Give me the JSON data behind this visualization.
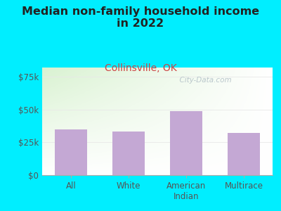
{
  "title": "Median non-family household income\nin 2022",
  "subtitle": "Collinsville, OK",
  "categories": [
    "All",
    "White",
    "American\nIndian",
    "Multirace"
  ],
  "values": [
    35000,
    33000,
    49000,
    32000
  ],
  "bar_color": "#c4a8d4",
  "title_fontsize": 11.5,
  "subtitle_fontsize": 10,
  "subtitle_color": "#cc4444",
  "title_color": "#222222",
  "background_outer": "#00eeff",
  "background_inner_top_left": "#d8efd0",
  "background_inner_bottom": "#ffffff",
  "yticks": [
    0,
    25000,
    50000,
    75000
  ],
  "ytick_labels": [
    "$0",
    "$25k",
    "$50k",
    "$75k"
  ],
  "ylim": [
    0,
    82000
  ],
  "watermark": "  City-Data.com",
  "watermark_color": "#b0bec5",
  "tick_color": "#555555",
  "grid_color": "#e8e8e8"
}
